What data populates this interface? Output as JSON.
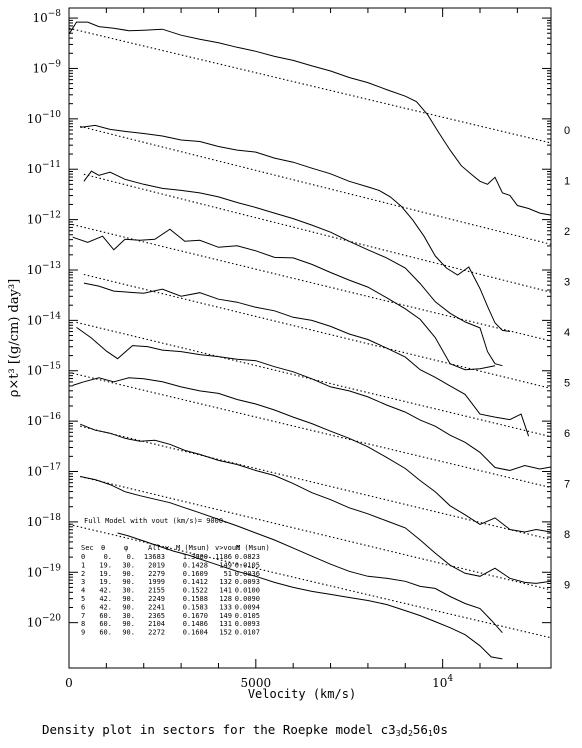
{
  "caption_parts": [
    "Density plot in sectors for the Roepke model c3",
    "3",
    "d",
    "2",
    "56",
    "1",
    "0s"
  ],
  "chart_data": {
    "type": "line",
    "title": "",
    "xlabel": "Velocity (km/s)",
    "ylabel": "ρ×t³ [(g/cm) day³]",
    "xlim": [
      0,
      12900
    ],
    "ylim_log10": [
      -20.9,
      -7.8
    ],
    "x_scale": "linear",
    "y_scale": "log",
    "x_ticks": [
      {
        "value": 0,
        "label": "0"
      },
      {
        "value": 5000,
        "label": "5000"
      },
      {
        "value": 10000,
        "label": "10",
        "sup": "4"
      }
    ],
    "y_ticks": [
      {
        "exp": -8,
        "label": "10",
        "sup": "−8"
      },
      {
        "exp": -9,
        "label": "10",
        "sup": "−9"
      },
      {
        "exp": -10,
        "label": "10",
        "sup": "−10"
      },
      {
        "exp": -11,
        "label": "10",
        "sup": "−11"
      },
      {
        "exp": -12,
        "label": "10",
        "sup": "−12"
      },
      {
        "exp": -13,
        "label": "10",
        "sup": "−13"
      },
      {
        "exp": -14,
        "label": "10",
        "sup": "−14"
      },
      {
        "exp": -15,
        "label": "10",
        "sup": "−15"
      },
      {
        "exp": -16,
        "label": "10",
        "sup": "−16"
      },
      {
        "exp": -17,
        "label": "10",
        "sup": "−17"
      },
      {
        "exp": -18,
        "label": "10",
        "sup": "−18"
      },
      {
        "exp": -19,
        "label": "10",
        "sup": "−19"
      },
      {
        "exp": -20,
        "label": "10",
        "sup": "−20"
      }
    ],
    "full_model_series": {
      "x": [
        0,
        200,
        500,
        800,
        1200,
        1600,
        2000,
        2500,
        3000,
        3500,
        4000,
        4500,
        5000,
        5500,
        6000,
        6500,
        7000,
        7500,
        8000,
        8500,
        9000,
        9300,
        9600,
        9900,
        10200,
        10500,
        10800,
        11000,
        11200,
        11400,
        11600,
        11800,
        12000,
        12300,
        12600,
        12900
      ],
      "log10_y": [
        -8.32,
        -8.08,
        -8.08,
        -8.17,
        -8.2,
        -8.25,
        -8.24,
        -8.22,
        -8.34,
        -8.42,
        -8.49,
        -8.58,
        -8.66,
        -8.76,
        -8.84,
        -8.95,
        -9.05,
        -9.18,
        -9.28,
        -9.42,
        -9.55,
        -9.66,
        -9.92,
        -10.28,
        -10.62,
        -10.93,
        -11.12,
        -11.24,
        -11.3,
        -11.16,
        -11.47,
        -11.52,
        -11.72,
        -11.78,
        -11.87,
        -11.91
      ]
    },
    "full_model_fit": {
      "x": [
        0,
        12900
      ],
      "log10_y": [
        -8.2,
        -10.48
      ]
    },
    "sectors": [
      {
        "name": "0",
        "x": [
          300,
          700,
          1100,
          1500,
          2000,
          2500,
          3000,
          3500,
          4000,
          4500,
          5000,
          5500,
          6000,
          6500,
          7000,
          7500,
          8000,
          8300,
          8600,
          8900,
          9200,
          9500,
          9800,
          10100,
          10400,
          10700,
          11000,
          11200,
          11400,
          11600,
          11800
        ],
        "log10_y": [
          -10.17,
          -10.13,
          -10.21,
          -10.25,
          -10.29,
          -10.34,
          -10.42,
          -10.45,
          -10.55,
          -10.62,
          -10.66,
          -10.78,
          -10.86,
          -10.98,
          -11.09,
          -11.24,
          -11.35,
          -11.42,
          -11.55,
          -11.74,
          -12.01,
          -12.33,
          -12.72,
          -12.96,
          -13.1,
          -12.94,
          -13.37,
          -13.72,
          -14.05,
          -14.2,
          -14.22
        ],
        "fit": {
          "x": [
            300,
            12900
          ],
          "log10_y": [
            -10.15,
            -12.49
          ]
        }
      },
      {
        "name": "1",
        "x": [
          400,
          600,
          800,
          1100,
          1500,
          2000,
          2500,
          3000,
          3500,
          4000,
          4500,
          5000,
          5500,
          6000,
          6500,
          7000,
          7500,
          8000,
          8500,
          9000,
          9400,
          9800,
          10200,
          10600,
          11000,
          11200,
          11400,
          11600
        ],
        "log10_y": [
          -11.24,
          -11.04,
          -11.12,
          -11.06,
          -11.2,
          -11.3,
          -11.38,
          -11.42,
          -11.47,
          -11.55,
          -11.66,
          -11.76,
          -11.87,
          -11.98,
          -12.11,
          -12.25,
          -12.43,
          -12.6,
          -12.76,
          -12.96,
          -13.27,
          -13.63,
          -13.86,
          -14.03,
          -14.15,
          -14.62,
          -14.86,
          -14.9
        ],
        "fit": {
          "x": [
            400,
            12900
          ],
          "log10_y": [
            -11.1,
            -13.44
          ]
        }
      },
      {
        "name": "2",
        "x": [
          100,
          500,
          900,
          1200,
          1500,
          1900,
          2300,
          2700,
          3100,
          3500,
          4000,
          4500,
          5000,
          5500,
          6000,
          6500,
          7000,
          7500,
          8000,
          8500,
          9000,
          9400,
          9800,
          10200,
          10600,
          11000,
          11400
        ],
        "log10_y": [
          -12.35,
          -12.45,
          -12.33,
          -12.6,
          -12.39,
          -12.41,
          -12.39,
          -12.19,
          -12.43,
          -12.41,
          -12.55,
          -12.52,
          -12.62,
          -12.75,
          -12.76,
          -12.89,
          -13.05,
          -13.2,
          -13.34,
          -13.55,
          -13.77,
          -13.98,
          -14.34,
          -14.86,
          -14.98,
          -14.96,
          -14.9
        ],
        "fit": {
          "x": [
            100,
            12900
          ],
          "log10_y": [
            -12.1,
            -14.41
          ]
        }
      },
      {
        "name": "3",
        "x": [
          400,
          800,
          1200,
          1600,
          2000,
          2500,
          3000,
          3500,
          4000,
          4500,
          5000,
          5500,
          6000,
          6500,
          7000,
          7500,
          8000,
          8500,
          9000,
          9400,
          9800,
          10200,
          10600,
          11000,
          11400,
          11800,
          12100,
          12300
        ],
        "log10_y": [
          -13.26,
          -13.32,
          -13.42,
          -13.44,
          -13.46,
          -13.38,
          -13.52,
          -13.45,
          -13.58,
          -13.64,
          -13.74,
          -13.81,
          -13.94,
          -14.0,
          -14.12,
          -14.27,
          -14.38,
          -14.55,
          -14.73,
          -14.98,
          -15.13,
          -15.3,
          -15.47,
          -15.86,
          -15.92,
          -15.97,
          -15.86,
          -16.3
        ],
        "fit": {
          "x": [
            400,
            12900
          ],
          "log10_y": [
            -13.09,
            -15.35
          ]
        }
      },
      {
        "name": "4",
        "x": [
          200,
          600,
          1000,
          1300,
          1700,
          2100,
          2500,
          3000,
          3500,
          4000,
          4500,
          5000,
          5500,
          6000,
          6500,
          7000,
          7500,
          8000,
          8500,
          9000,
          9400,
          9800,
          10200,
          10600,
          11000,
          11400,
          11800,
          12200,
          12600,
          12900
        ],
        "log10_y": [
          -14.14,
          -14.35,
          -14.61,
          -14.76,
          -14.5,
          -14.52,
          -14.59,
          -14.62,
          -14.68,
          -14.72,
          -14.77,
          -14.8,
          -14.92,
          -15.02,
          -15.16,
          -15.32,
          -15.4,
          -15.52,
          -15.68,
          -15.82,
          -15.98,
          -16.1,
          -16.28,
          -16.42,
          -16.62,
          -16.92,
          -16.98,
          -16.88,
          -16.95,
          -16.91
        ],
        "fit": {
          "x": [
            200,
            12900
          ],
          "log10_y": [
            -14.04,
            -16.31
          ]
        }
      },
      {
        "name": "5",
        "x": [
          100,
          400,
          800,
          1200,
          1600,
          2000,
          2500,
          3000,
          3500,
          4000,
          4500,
          5000,
          5500,
          6000,
          6500,
          7000,
          7500,
          8000,
          8500,
          9000,
          9400,
          9800,
          10200,
          10600,
          11000,
          11400,
          11800,
          12200,
          12500,
          12900
        ],
        "log10_y": [
          -15.29,
          -15.22,
          -15.14,
          -15.22,
          -15.14,
          -15.16,
          -15.22,
          -15.32,
          -15.4,
          -15.45,
          -15.57,
          -15.66,
          -15.78,
          -15.92,
          -16.05,
          -16.2,
          -16.34,
          -16.51,
          -16.72,
          -16.94,
          -17.18,
          -17.4,
          -17.68,
          -17.86,
          -18.05,
          -17.92,
          -18.15,
          -18.2,
          -18.15,
          -18.2
        ],
        "fit": {
          "x": [
            100,
            12900
          ],
          "log10_y": [
            -15.05,
            -17.32
          ]
        }
      },
      {
        "name": "6",
        "x": [
          300,
          700,
          1100,
          1500,
          1900,
          2300,
          2700,
          3100,
          3500,
          4000,
          4500,
          5000,
          5500,
          6000,
          6500,
          7000,
          7500,
          8000,
          8500,
          9000,
          9400,
          9800,
          10200,
          10600,
          11000,
          11400,
          11800,
          12200,
          12500,
          12900
        ],
        "log10_y": [
          -16.06,
          -16.18,
          -16.24,
          -16.34,
          -16.4,
          -16.38,
          -16.46,
          -16.58,
          -16.66,
          -16.78,
          -16.86,
          -16.98,
          -17.08,
          -17.24,
          -17.42,
          -17.56,
          -17.72,
          -17.84,
          -17.98,
          -18.12,
          -18.36,
          -18.62,
          -18.86,
          -19.02,
          -19.08,
          -18.92,
          -19.12,
          -19.2,
          -19.22,
          -19.18
        ],
        "fit": {
          "x": [
            300,
            12900
          ],
          "log10_y": [
            -16.1,
            -18.35
          ]
        }
      },
      {
        "name": "7",
        "x": [
          300,
          700,
          1100,
          1500,
          1900,
          2300,
          2700,
          3100,
          3500,
          4000,
          4500,
          5000,
          5500,
          6000,
          6500,
          7000,
          7500,
          8000,
          8500,
          9000,
          9400,
          9800,
          10200,
          10600,
          11000,
          11300,
          11600
        ],
        "log10_y": [
          -17.1,
          -17.16,
          -17.26,
          -17.4,
          -17.48,
          -17.55,
          -17.62,
          -17.72,
          -17.82,
          -17.95,
          -18.08,
          -18.22,
          -18.36,
          -18.52,
          -18.68,
          -18.84,
          -18.98,
          -19.08,
          -19.12,
          -19.18,
          -19.28,
          -19.32,
          -19.48,
          -19.62,
          -19.72,
          -19.95,
          -20.2
        ],
        "fit": {
          "x": [
            300,
            12900
          ],
          "log10_y": [
            -17.1,
            -19.35
          ]
        }
      },
      {
        "name": "8",
        "x": [
          1300,
          1600,
          2000,
          2400,
          2800,
          3200,
          3600,
          4000,
          4500,
          5000,
          5500,
          6000,
          6500,
          7000,
          7500,
          8000,
          8500,
          9000,
          9400,
          9800,
          10200,
          10600,
          11000,
          11300,
          11600
        ],
        "log10_y": [
          -18.22,
          -18.28,
          -18.38,
          -18.48,
          -18.58,
          -18.66,
          -18.76,
          -18.86,
          -18.98,
          -19.08,
          -19.2,
          -19.3,
          -19.38,
          -19.44,
          -19.5,
          -19.56,
          -19.64,
          -19.76,
          -19.86,
          -19.98,
          -20.1,
          -20.24,
          -20.46,
          -20.68,
          -20.72
        ],
        "fit": {
          "x": [
            0,
            12900
          ],
          "log10_y": [
            -18.05,
            -20.3
          ]
        }
      }
    ],
    "annotation": {
      "text": "Full Model with vout (km/s)= 9000."
    },
    "table": {
      "headers": [
        "Sec",
        "θ",
        "φ",
        "All v",
        "M (Msun)",
        "v>vout",
        "M (Msun)"
      ],
      "rows": [
        [
          "0",
          "0.",
          "0.",
          "13683",
          "1.3900",
          "1186",
          "0.0823"
        ],
        [
          "1",
          "19.",
          "30.",
          "2019",
          "0.1428",
          "149",
          "0.0105"
        ],
        [
          "2",
          "19.",
          "90.",
          "2279",
          "0.1609",
          "51",
          "0.0036"
        ],
        [
          "3",
          "19.",
          "90.",
          "1999",
          "0.1412",
          "132",
          "0.0093"
        ],
        [
          "4",
          "42.",
          "30.",
          "2155",
          "0.1522",
          "141",
          "0.0100"
        ],
        [
          "5",
          "42.",
          "90.",
          "2249",
          "0.1588",
          "128",
          "0.0090"
        ],
        [
          "6",
          "42.",
          "90.",
          "2241",
          "0.1583",
          "133",
          "0.0094"
        ],
        [
          "7",
          "60.",
          "30.",
          "2365",
          "0.1670",
          "149",
          "0.0105"
        ],
        [
          "8",
          "60.",
          "90.",
          "2104",
          "0.1486",
          "131",
          "0.0093"
        ],
        [
          "9",
          "60.",
          "90.",
          "2272",
          "0.1604",
          "152",
          "0.0107"
        ]
      ]
    },
    "right_labels": [
      "0",
      "1",
      "2",
      "3",
      "4",
      "5",
      "6",
      "7",
      "8",
      "9"
    ],
    "grid": false,
    "legend": "none"
  }
}
